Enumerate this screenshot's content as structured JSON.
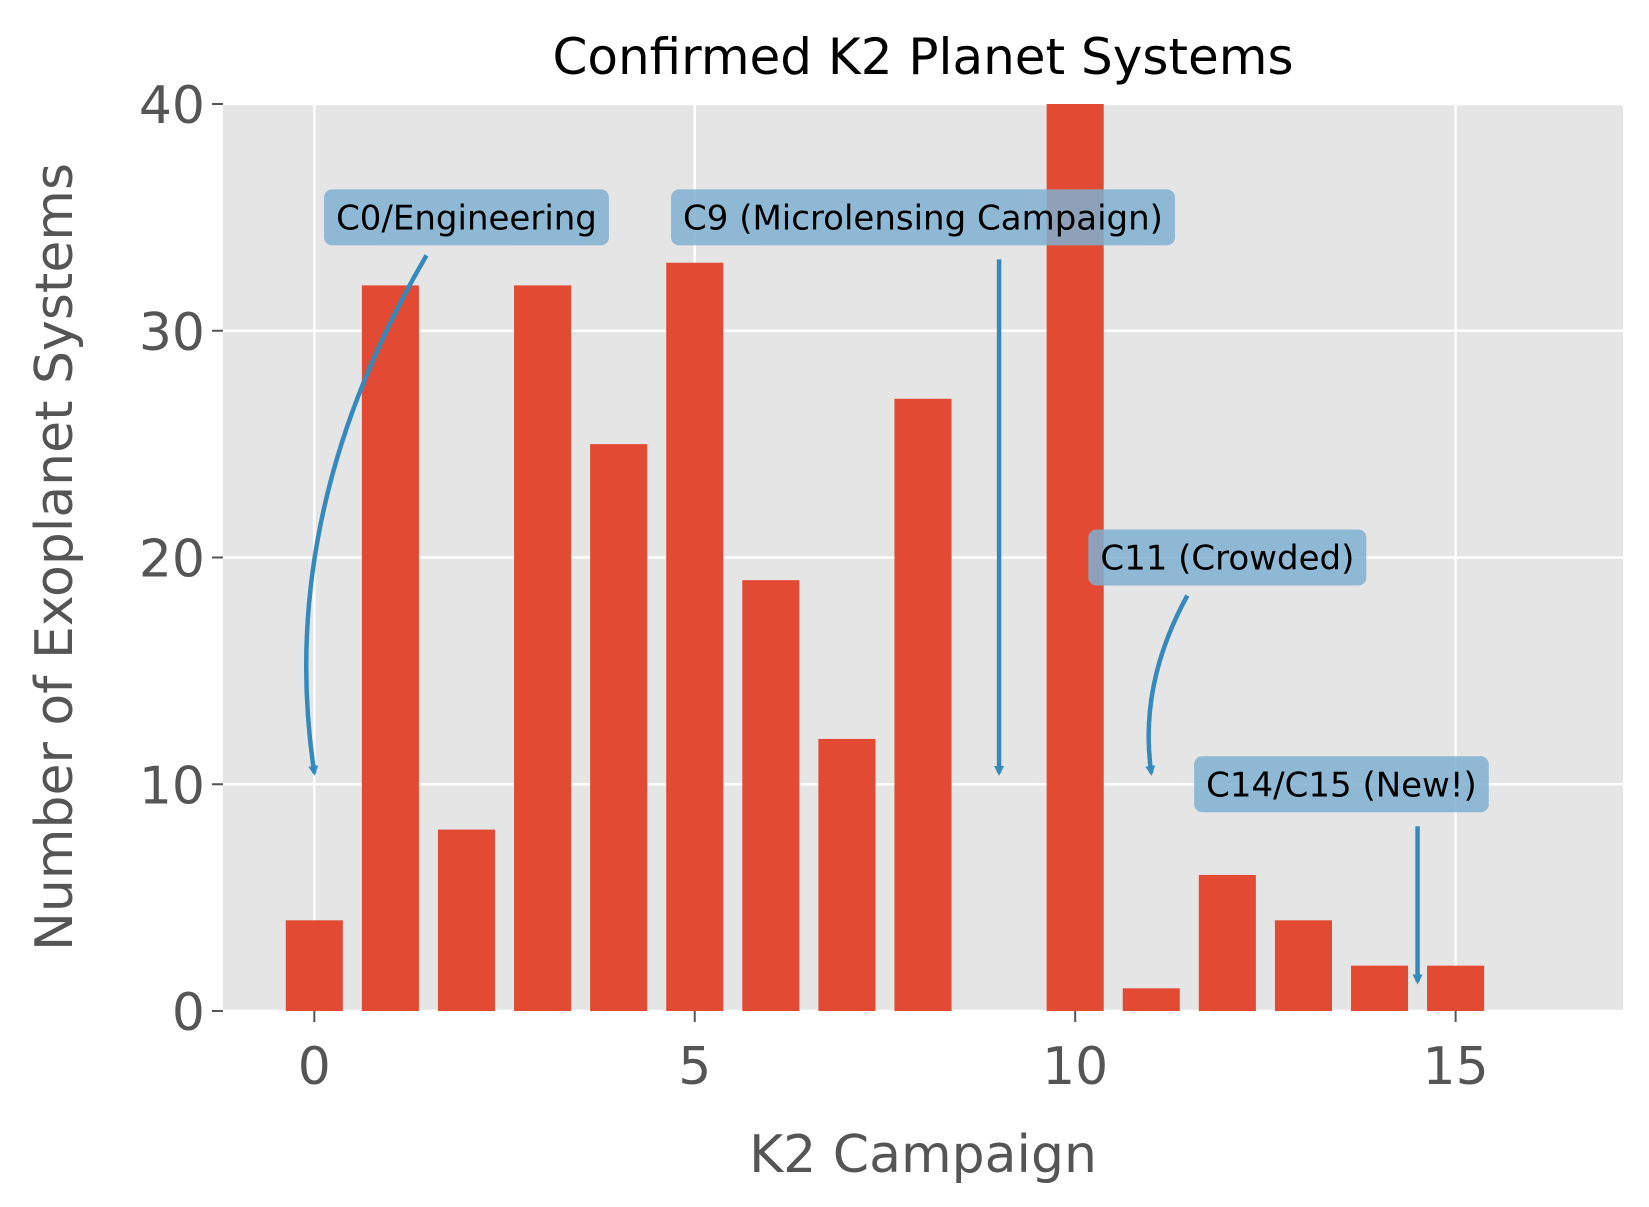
{
  "chart_data": {
    "type": "bar",
    "title": "Confirmed K2 Planet Systems",
    "xlabel": "K2 Campaign",
    "ylabel": "Number of Exoplanet Systems",
    "xlim": [
      -1.2,
      17.2
    ],
    "ylim": [
      0,
      40
    ],
    "xticks": [
      0,
      5,
      10,
      15
    ],
    "yticks": [
      0,
      10,
      20,
      30,
      40
    ],
    "grid": true,
    "bar_width": 0.75,
    "colors": {
      "bar": "#E24A33",
      "axes_bg": "#E5E5E5",
      "grid": "#FFFFFF",
      "annotation_box": "#7FB0D0",
      "arrow": "#348ABD"
    },
    "x": [
      0,
      1,
      2,
      3,
      4,
      5,
      6,
      7,
      8,
      10,
      11,
      12,
      13,
      14,
      15
    ],
    "values": [
      4,
      32,
      8,
      32,
      25,
      33,
      19,
      12,
      27,
      40,
      1,
      6,
      4,
      2,
      2
    ],
    "annotations": [
      {
        "text": "C0/Engineering",
        "xy": [
          0,
          10.5
        ],
        "xytext": [
          2,
          35
        ],
        "curved": true
      },
      {
        "text": "C9 (Microlensing Campaign)",
        "xy": [
          9,
          10.5
        ],
        "xytext": [
          8,
          35
        ],
        "curved": false
      },
      {
        "text": "C11 (Crowded)",
        "xy": [
          11,
          10.5
        ],
        "xytext": [
          12,
          20
        ],
        "curved": true
      },
      {
        "text": "C14/C15 (New!)",
        "xy": [
          14.5,
          1.3
        ],
        "xytext": [
          13.5,
          10
        ],
        "curved": false
      }
    ]
  }
}
